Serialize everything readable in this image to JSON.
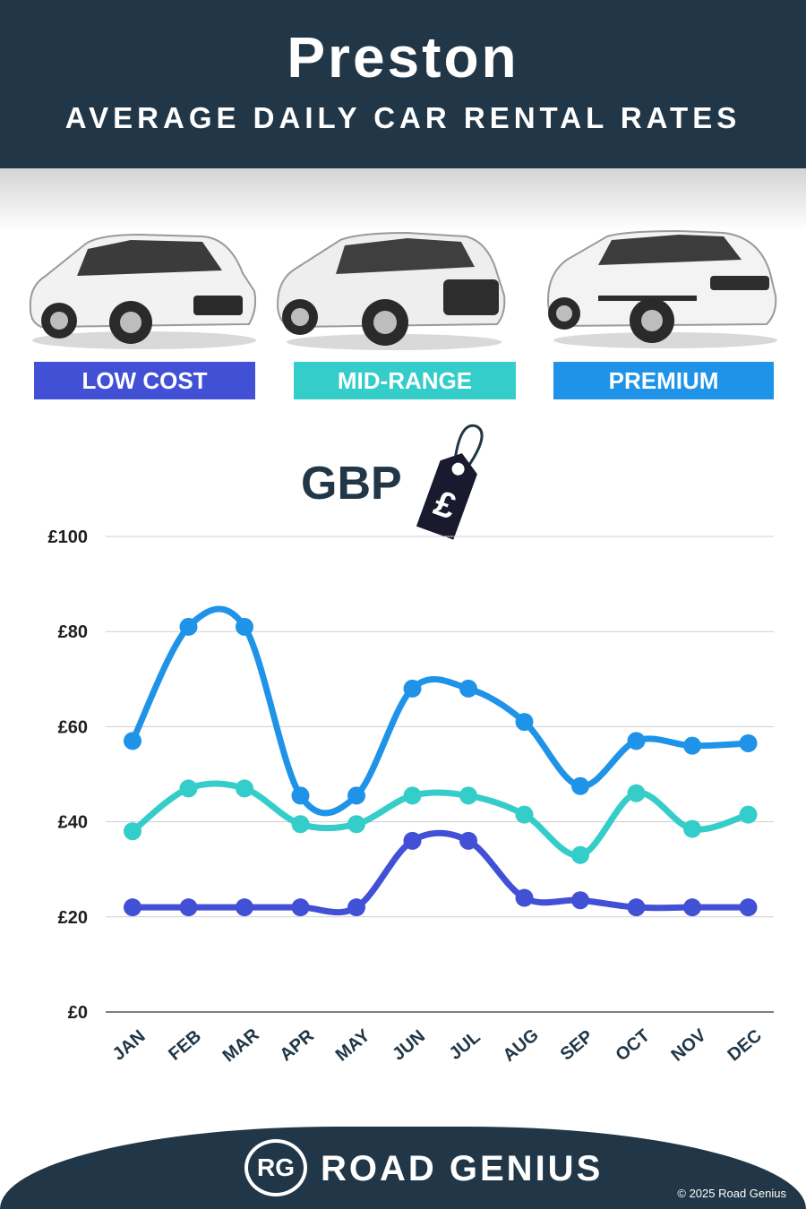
{
  "header": {
    "title": "Preston",
    "subtitle": "AVERAGE DAILY CAR RENTAL RATES"
  },
  "tiers": [
    {
      "label": "LOW COST",
      "color": "#4250d6"
    },
    {
      "label": "MID-RANGE",
      "color": "#35cdc9"
    },
    {
      "label": "PREMIUM",
      "color": "#1e93e8"
    }
  ],
  "currency": {
    "label": "GBP",
    "symbol": "£"
  },
  "chart_data": {
    "type": "line",
    "categories": [
      "JAN",
      "FEB",
      "MAR",
      "APR",
      "MAY",
      "JUN",
      "JUL",
      "AUG",
      "SEP",
      "OCT",
      "NOV",
      "DEC"
    ],
    "yticks": [
      "£0",
      "£20",
      "£40",
      "£60",
      "£80",
      "£100"
    ],
    "ylim": [
      0,
      100
    ],
    "grid": true,
    "series": [
      {
        "key": "premium",
        "color": "#1e93e8",
        "values": [
          57,
          81,
          81,
          45.5,
          45.5,
          68,
          68,
          61,
          47.5,
          57,
          56,
          56.5
        ]
      },
      {
        "key": "mid",
        "color": "#35cdc9",
        "values": [
          38,
          47,
          47,
          39.5,
          39.5,
          45.5,
          45.5,
          41.5,
          33,
          46,
          38.5,
          41.5
        ]
      },
      {
        "key": "low",
        "color": "#4250d6",
        "values": [
          22,
          22,
          22,
          22,
          22,
          36,
          36,
          24,
          23.5,
          22,
          22,
          22
        ]
      }
    ]
  },
  "footer": {
    "logo": "RG",
    "brand": "ROAD GENIUS",
    "copyright": "© 2025 Road Genius"
  }
}
